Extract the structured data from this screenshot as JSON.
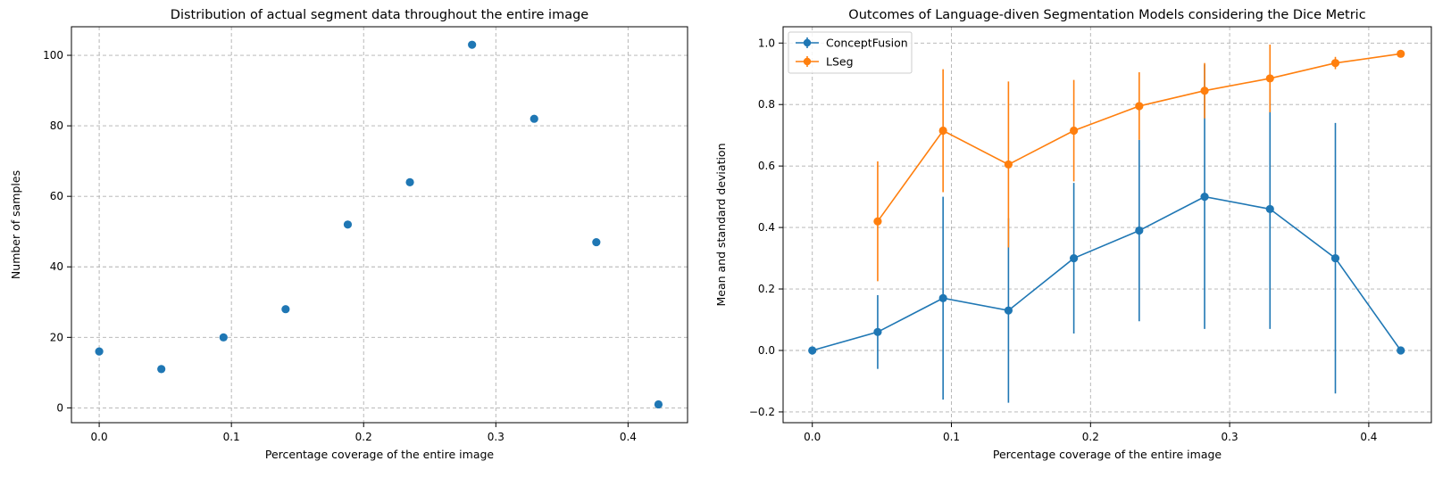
{
  "colors": {
    "blue": "#1f77b4",
    "orange": "#ff7f0e",
    "grid": "#b0b0b0"
  },
  "chart_data": [
    {
      "type": "scatter",
      "title": "Distribution of actual segment data throughout the entire image",
      "xlabel": "Percentage coverage of the entire image",
      "ylabel": "Number of samples",
      "xlim": [
        -0.021,
        0.445
      ],
      "ylim": [
        -4.2,
        108.1
      ],
      "xticks": [
        0.0,
        0.1,
        0.2,
        0.3,
        0.4
      ],
      "xtick_labels": [
        "0.0",
        "0.1",
        "0.2",
        "0.3",
        "0.4"
      ],
      "yticks": [
        0,
        20,
        40,
        60,
        80,
        100
      ],
      "ytick_labels": [
        "0",
        "20",
        "40",
        "60",
        "80",
        "100"
      ],
      "grid": true,
      "x": [
        0.0,
        0.047,
        0.094,
        0.141,
        0.188,
        0.235,
        0.282,
        0.329,
        0.376,
        0.423
      ],
      "values": [
        16,
        11,
        20,
        28,
        52,
        64,
        103,
        82,
        47,
        1
      ]
    },
    {
      "type": "line",
      "title": "Outcomes of Language-diven Segmentation Models considering the Dice Metric",
      "xlabel": "Percentage coverage of the entire image",
      "ylabel": "Mean and standard deviation",
      "xlim": [
        -0.021,
        0.445
      ],
      "ylim": [
        -0.235,
        1.053
      ],
      "xticks": [
        0.0,
        0.1,
        0.2,
        0.3,
        0.4
      ],
      "xtick_labels": [
        "0.0",
        "0.1",
        "0.2",
        "0.3",
        "0.4"
      ],
      "yticks": [
        -0.2,
        0.0,
        0.2,
        0.4,
        0.6,
        0.8,
        1.0
      ],
      "ytick_labels": [
        "−0.2",
        "0.0",
        "0.2",
        "0.4",
        "0.6",
        "0.8",
        "1.0"
      ],
      "grid": true,
      "legend_position": "top-left",
      "x": [
        0.0,
        0.047,
        0.094,
        0.141,
        0.188,
        0.235,
        0.282,
        0.329,
        0.376,
        0.423
      ],
      "series": [
        {
          "name": "ConceptFusion",
          "color": "#1f77b4",
          "x": [
            0.0,
            0.047,
            0.094,
            0.141,
            0.188,
            0.235,
            0.282,
            0.329,
            0.376,
            0.423
          ],
          "values": [
            0.0,
            0.06,
            0.17,
            0.13,
            0.3,
            0.39,
            0.5,
            0.46,
            0.3,
            0.0
          ],
          "std": [
            0.0,
            0.12,
            0.33,
            0.3,
            0.245,
            0.295,
            0.43,
            0.39,
            0.44,
            0.0
          ]
        },
        {
          "name": "LSeg",
          "color": "#ff7f0e",
          "x": [
            0.047,
            0.094,
            0.141,
            0.188,
            0.235,
            0.282,
            0.329,
            0.376,
            0.423
          ],
          "values": [
            0.42,
            0.715,
            0.605,
            0.715,
            0.795,
            0.845,
            0.885,
            0.935,
            0.965
          ],
          "std": [
            0.195,
            0.2,
            0.27,
            0.165,
            0.11,
            0.09,
            0.11,
            0.02,
            0.0
          ]
        }
      ]
    }
  ]
}
